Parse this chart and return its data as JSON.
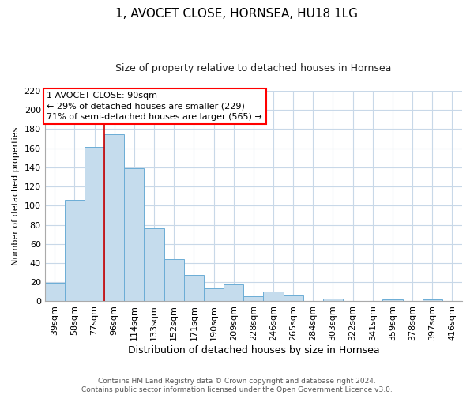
{
  "title": "1, AVOCET CLOSE, HORNSEA, HU18 1LG",
  "subtitle": "Size of property relative to detached houses in Hornsea",
  "xlabel": "Distribution of detached houses by size in Hornsea",
  "ylabel": "Number of detached properties",
  "bar_labels": [
    "39sqm",
    "58sqm",
    "77sqm",
    "96sqm",
    "114sqm",
    "133sqm",
    "152sqm",
    "171sqm",
    "190sqm",
    "209sqm",
    "228sqm",
    "246sqm",
    "265sqm",
    "284sqm",
    "303sqm",
    "322sqm",
    "341sqm",
    "359sqm",
    "378sqm",
    "397sqm",
    "416sqm"
  ],
  "bar_values": [
    19,
    106,
    161,
    175,
    139,
    76,
    44,
    28,
    14,
    18,
    5,
    10,
    6,
    0,
    3,
    0,
    0,
    2,
    0,
    2,
    0
  ],
  "bar_color": "#c5dced",
  "bar_edge_color": "#6badd6",
  "vline_color": "#cc0000",
  "vline_x_index": 3,
  "ylim": [
    0,
    220
  ],
  "yticks": [
    0,
    20,
    40,
    60,
    80,
    100,
    120,
    140,
    160,
    180,
    200,
    220
  ],
  "annotation_title": "1 AVOCET CLOSE: 90sqm",
  "annotation_line1": "← 29% of detached houses are smaller (229)",
  "annotation_line2": "71% of semi-detached houses are larger (565) →",
  "footer_line1": "Contains HM Land Registry data © Crown copyright and database right 2024.",
  "footer_line2": "Contains public sector information licensed under the Open Government Licence v3.0.",
  "background_color": "#ffffff",
  "grid_color": "#c8d8e8",
  "title_fontsize": 11,
  "subtitle_fontsize": 9,
  "ylabel_fontsize": 8,
  "xlabel_fontsize": 9,
  "tick_fontsize": 8,
  "ann_fontsize": 8,
  "footer_fontsize": 6.5
}
